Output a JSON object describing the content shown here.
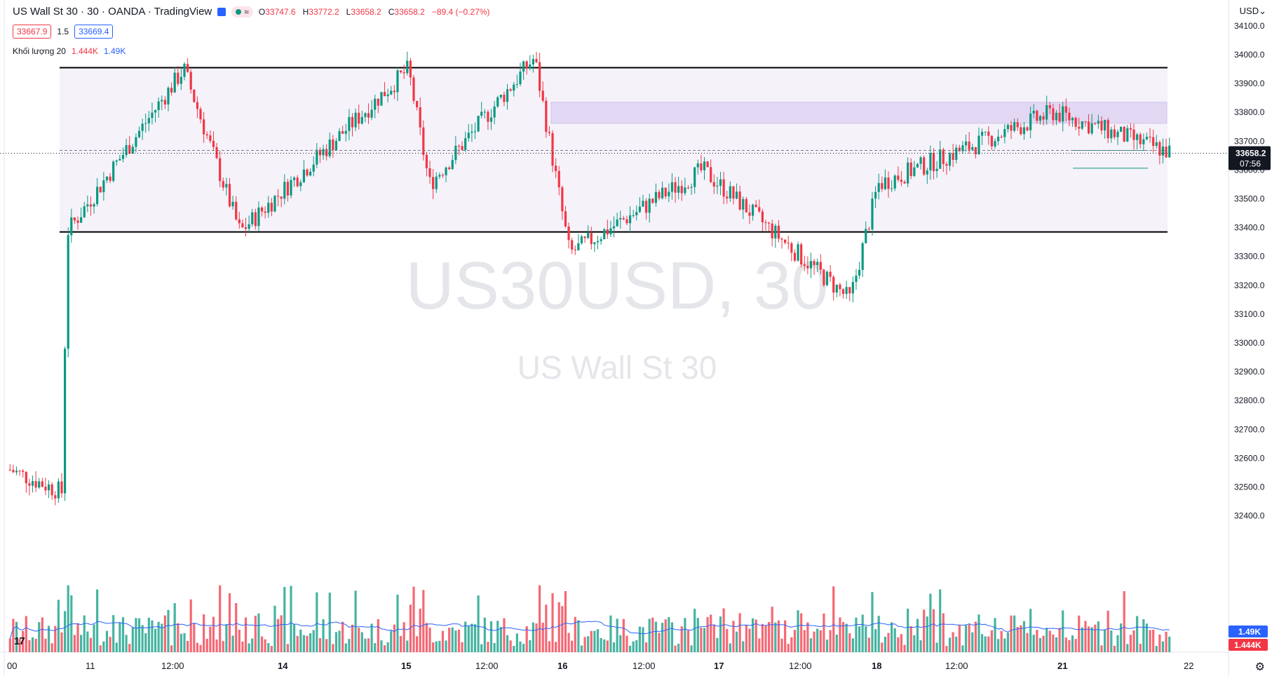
{
  "header": {
    "title": "US Wall St 30 · 30 · OANDA · TradingView",
    "open_label": "O",
    "open": "33747.6",
    "high_label": "H",
    "high": "33772.2",
    "low_label": "L",
    "low": "33658.2",
    "close_label": "C",
    "close": "33658.2",
    "change": "−89.4 (−0.27%)",
    "currency": "USD",
    "pill_symbol": "≈"
  },
  "prices": {
    "sell": "33667.9",
    "spread": "1.5",
    "buy": "33669.4"
  },
  "volume_legend": {
    "label": "Khối lượng 20",
    "value_a": "1.444K",
    "value_b": "1.49K"
  },
  "watermark": {
    "symbol": "US30USD, 30",
    "name": "US Wall St 30"
  },
  "price_tag": {
    "price": "33658.2",
    "countdown": "07:56"
  },
  "volume_tags": {
    "ma": "1.49K",
    "last": "1.444K"
  },
  "icons": {
    "logo": "tradingview-logo-icon",
    "settings": "gear-icon",
    "flag": "flag-icon"
  },
  "colors": {
    "up": "#089981",
    "down": "#f23645",
    "ma": "#2962ff",
    "range_fill": "#f3eff9",
    "zone_fill": "#e2d8f3"
  },
  "chart_data": {
    "type": "candlestick",
    "title": "US Wall St 30 · 30 · OANDA",
    "ylim": [
      32000,
      34150
    ],
    "y_ticks": [
      "34100.0",
      "34000.0",
      "33900.0",
      "33800.0",
      "33700.0",
      "33600.0",
      "33500.0",
      "33400.0",
      "33300.0",
      "33200.0",
      "33100.0",
      "33000.0",
      "32900.0",
      "32800.0",
      "32700.0",
      "32600.0",
      "32500.0",
      "32400.0"
    ],
    "x_tick_labels": [
      "00",
      "11",
      "12:00",
      "14",
      "15",
      "12:00",
      "16",
      "12:00",
      "17",
      "12:00",
      "18",
      "12:00",
      "21",
      "22"
    ],
    "range_box": {
      "top": 33955,
      "bottom": 33385
    },
    "supply_zone": {
      "top": 33835,
      "bottom": 33762
    },
    "small_range": {
      "top": 33668,
      "bottom": 33606
    },
    "key_points": [
      {
        "t": "10 start",
        "price": 32560
      },
      {
        "t": "10 spike low",
        "price": 32480
      },
      {
        "t": "10 spike high",
        "price": 33380
      },
      {
        "t": "11 high",
        "price": 33950
      },
      {
        "t": "14 low",
        "price": 33385
      },
      {
        "t": "15 high",
        "price": 33950
      },
      {
        "t": "15 low",
        "price": 33550
      },
      {
        "t": "16 high",
        "price": 33990
      },
      {
        "t": "16 low",
        "price": 33310
      },
      {
        "t": "17",
        "price": 33600
      },
      {
        "t": "18 low",
        "price": 33150
      },
      {
        "t": "18 recovery",
        "price": 33550
      },
      {
        "t": "21 high",
        "price": 33800
      },
      {
        "t": "21 last",
        "price": 33658.2
      }
    ],
    "last_price": 33658.2,
    "volume_ma_last": "1.49K",
    "volume_last": "1.444K"
  }
}
